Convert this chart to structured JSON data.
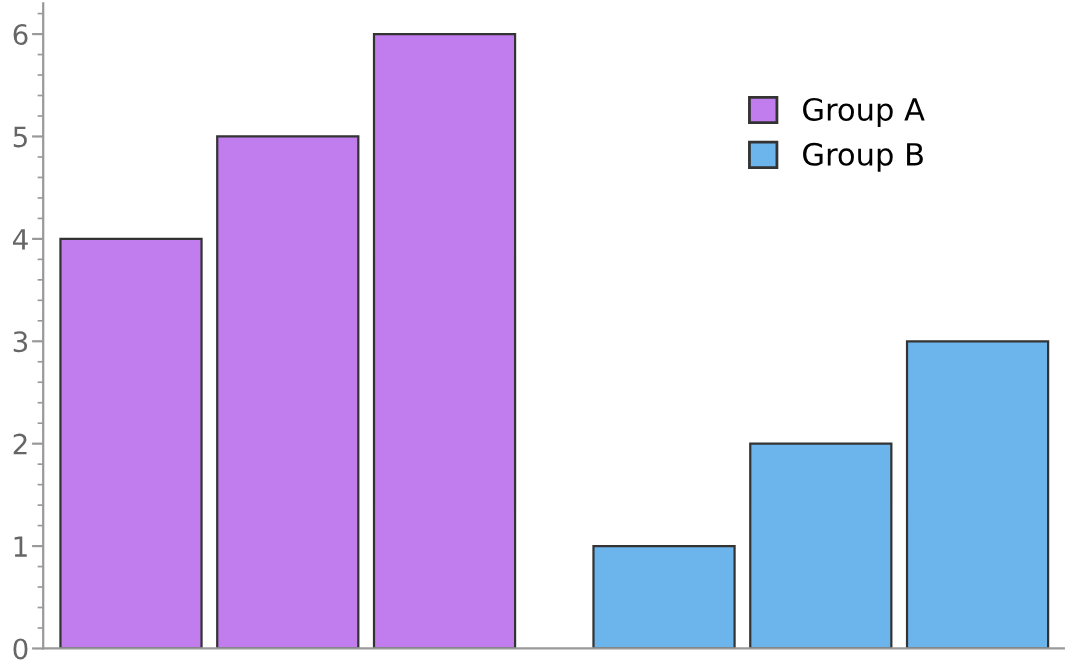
{
  "chart_data": {
    "type": "bar",
    "categories": [
      null,
      null,
      null,
      null,
      null,
      null
    ],
    "series": [
      {
        "name": "Group A",
        "color": "#c17cee",
        "values": [
          4,
          5,
          6,
          null,
          null,
          null
        ]
      },
      {
        "name": "Group B",
        "color": "#6cb5ec",
        "values": [
          null,
          null,
          null,
          1,
          2,
          3
        ]
      }
    ],
    "ylim": [
      0,
      6.3
    ],
    "yticks": [
      0,
      1,
      2,
      3,
      4,
      5,
      6
    ],
    "grid": false,
    "legend": "top right"
  }
}
